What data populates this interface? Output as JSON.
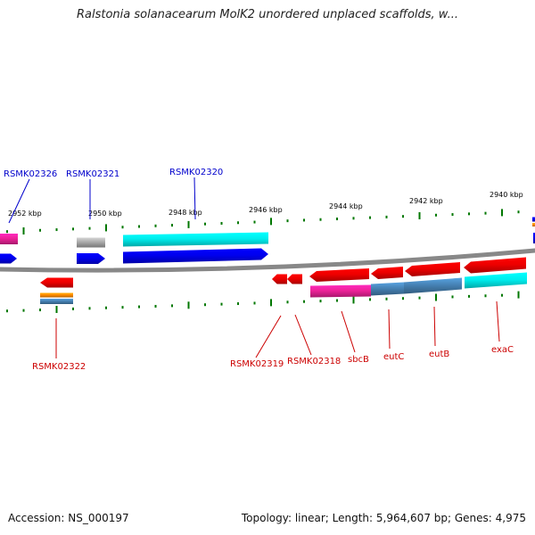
{
  "title": "Ralstonia solanacearum MolK2 unordered unplaced scaffolds, w...",
  "footer": {
    "accession": "Accession: NS_000197",
    "stats": "Topology: linear; Length: 5,964,607 bp; Genes: 4,975"
  },
  "colors": {
    "top_label": "#0000cc",
    "bottom_label": "#cc0000",
    "tick": "#007700",
    "backbone": "#888888",
    "blue": "#0000ee",
    "red": "#ee0000",
    "cyan": "#00eeee",
    "magenta": "#ee2299",
    "grey": "#aaaaaa",
    "steel": "#4682b4",
    "orange": "#ff8c00"
  },
  "scale": {
    "unit": "kbp",
    "labels": [
      "2952 kbp",
      "2950 kbp",
      "2948 kbp",
      "2946 kbp",
      "2944 kbp",
      "2942 kbp",
      "2940 kbp"
    ]
  },
  "gene_labels": {
    "top": [
      "RSMK02326",
      "RSMK02321",
      "RSMK02320"
    ],
    "bottom": [
      "RSMK02322",
      "RSMK02319",
      "RSMK02318",
      "sbcB",
      "eutC",
      "eutB",
      "exaC"
    ]
  }
}
